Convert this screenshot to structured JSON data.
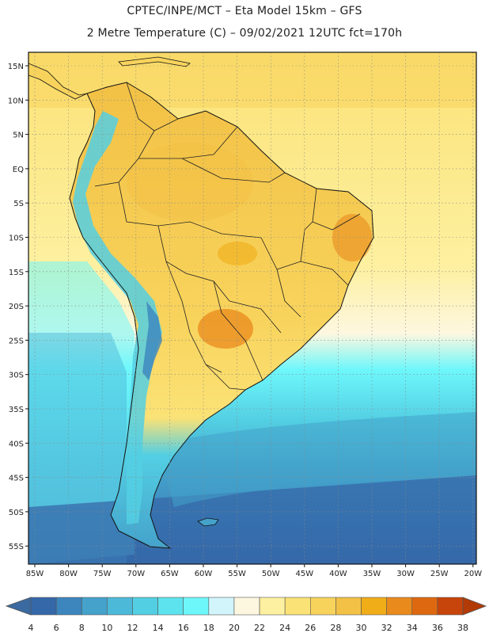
{
  "header": {
    "line1": "CPTEC/INPE/MCT –  Eta Model 15km – GFS",
    "line2": "2 Metre Temperature (C) – 09/02/2021 12UTC fct=170h"
  },
  "map": {
    "lat_labels": [
      "15N",
      "10N",
      "5N",
      "EQ",
      "5S",
      "10S",
      "15S",
      "20S",
      "25S",
      "30S",
      "35S",
      "40S",
      "45S",
      "50S",
      "55S"
    ],
    "lon_labels": [
      "85W",
      "80W",
      "75W",
      "70W",
      "65W",
      "60W",
      "55W",
      "50W",
      "45W",
      "40W",
      "35W",
      "30W",
      "25W",
      "20W"
    ]
  },
  "legend": {
    "values": [
      "4",
      "6",
      "8",
      "10",
      "12",
      "14",
      "16",
      "18",
      "20",
      "22",
      "24",
      "26",
      "28",
      "30",
      "32",
      "34",
      "36",
      "38"
    ],
    "colors": [
      "#3568a8",
      "#3c85bd",
      "#44a2cb",
      "#4db9d9",
      "#53cfe3",
      "#5de3ee",
      "#6ef7fb",
      "#d2f4fb",
      "#fdf7e0",
      "#fdf0a0",
      "#fbe276",
      "#f8d35c",
      "#f2c145",
      "#f0ad18",
      "#e98a1c",
      "#de6810",
      "#c7440a"
    ],
    "low_color": "#3a6aa0",
    "high_color": "#b23a06"
  }
}
